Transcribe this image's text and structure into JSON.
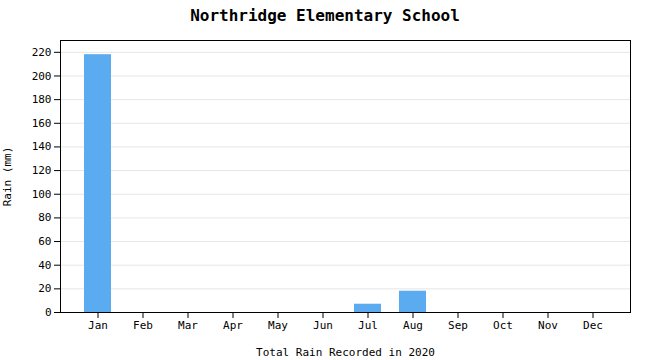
{
  "chart_data": {
    "type": "bar",
    "title": "Northridge Elementary School",
    "xlabel": "Total Rain Recorded in 2020",
    "ylabel": "Rain (mm)",
    "categories": [
      "Jan",
      "Feb",
      "Mar",
      "Apr",
      "May",
      "Jun",
      "Jul",
      "Aug",
      "Sep",
      "Oct",
      "Nov",
      "Dec"
    ],
    "values": [
      218,
      0,
      0,
      0,
      0,
      0,
      7,
      18,
      0,
      0,
      0,
      0
    ],
    "color": "#5aabf0",
    "ylim": [
      0,
      230
    ],
    "yticks": [
      0,
      20,
      40,
      60,
      80,
      100,
      120,
      140,
      160,
      180,
      200,
      220
    ],
    "grid": true
  }
}
